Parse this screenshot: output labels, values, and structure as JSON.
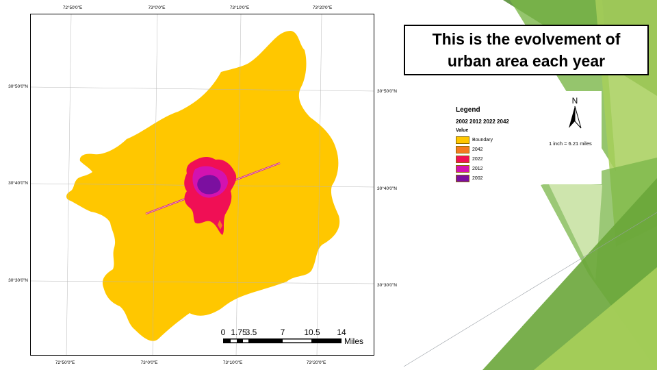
{
  "slide": {
    "title": "This is the evolvement of\nurban area each year",
    "colors": {
      "green_dark": "#4f8a2b",
      "green_mid": "#7ab648",
      "green_light": "#a7cf5a",
      "green_pale": "#d4e8b4"
    }
  },
  "map": {
    "coords": {
      "top": [
        "72°50'0\"E",
        "73°0'0\"E",
        "73°10'0\"E",
        "73°20'0\"E"
      ],
      "bottom": [
        "72°50'0\"E",
        "73°0'0\"E",
        "73°10'0\"E",
        "73°20'0\"E"
      ],
      "left": [
        "30°50'0\"N",
        "30°40'0\"N",
        "30°30'0\"N"
      ],
      "right": [
        "30°50'0\"N",
        "30°40'0\"N",
        "30°30'0\"N"
      ]
    },
    "scale_bar": {
      "ticks": [
        "0",
        "1.75",
        "3.5",
        "7",
        "10.5",
        "14"
      ],
      "unit": "Miles"
    },
    "colors": {
      "boundary": "#ffc700",
      "y2042": "#f47a20",
      "y2022": "#f00f55",
      "y2012": "#d312b0",
      "y2002": "#7b0fa0",
      "line": "#f3e07a"
    }
  },
  "legend": {
    "title": "Legend",
    "layer_name": "2002 2012 2022 2042",
    "field": "Value",
    "items": [
      {
        "label": "Boundary",
        "color": "#ffc700"
      },
      {
        "label": "2042",
        "color": "#f47a20"
      },
      {
        "label": "2022",
        "color": "#f00f55"
      },
      {
        "label": "2012",
        "color": "#d312b0"
      },
      {
        "label": "2002",
        "color": "#7b0fa0"
      }
    ],
    "north_label": "N",
    "scale_text": "1 inch = 6.21 miles"
  }
}
